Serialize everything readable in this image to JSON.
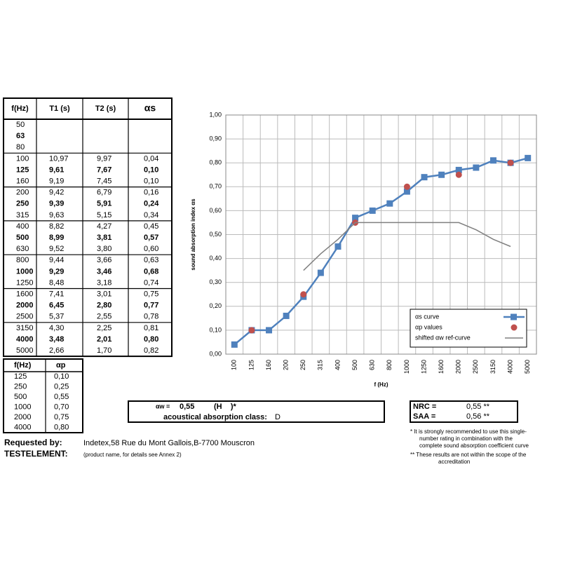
{
  "table": {
    "header": [
      "f(Hz)",
      "T1 (s)",
      "T2 (s)",
      "αs"
    ],
    "rows": [
      [
        "50"
      ],
      [
        "63"
      ],
      [
        "80"
      ],
      [
        "100",
        "10,97",
        "9,97",
        "0,04"
      ],
      [
        "125",
        "9,61",
        "7,67",
        "0,10"
      ],
      [
        "160",
        "9,19",
        "7,45",
        "0,10"
      ],
      [
        "200",
        "9,42",
        "6,79",
        "0,16"
      ],
      [
        "250",
        "9,39",
        "5,91",
        "0,24"
      ],
      [
        "315",
        "9,63",
        "5,15",
        "0,34"
      ],
      [
        "400",
        "8,82",
        "4,27",
        "0,45"
      ],
      [
        "500",
        "8,99",
        "3,81",
        "0,57"
      ],
      [
        "630",
        "9,52",
        "3,80",
        "0,60"
      ],
      [
        "800",
        "9,44",
        "3,66",
        "0,63"
      ],
      [
        "1000",
        "9,29",
        "3,46",
        "0,68"
      ],
      [
        "1250",
        "8,48",
        "3,18",
        "0,74"
      ],
      [
        "1600",
        "7,41",
        "3,01",
        "0,75"
      ],
      [
        "2000",
        "6,45",
        "2,80",
        "0,77"
      ],
      [
        "2500",
        "5,37",
        "2,55",
        "0,78"
      ],
      [
        "3150",
        "4,30",
        "2,25",
        "0,81"
      ],
      [
        "4000",
        "3,48",
        "2,01",
        "0,80"
      ],
      [
        "5000",
        "2,66",
        "1,70",
        "0,82"
      ]
    ]
  },
  "table2": {
    "header": [
      "f(Hz)",
      "αp"
    ],
    "rows": [
      [
        "125",
        "0,10"
      ],
      [
        "250",
        "0,25"
      ],
      [
        "500",
        "0,55"
      ],
      [
        "1000",
        "0,70"
      ],
      [
        "2000",
        "0,75"
      ],
      [
        "4000",
        "0,80"
      ]
    ]
  },
  "chart_data": {
    "type": "line",
    "y_label": "sound absorption index αs",
    "x_label": "f (Hz)",
    "categories": [
      "100",
      "125",
      "160",
      "200",
      "250",
      "315",
      "400",
      "500",
      "630",
      "800",
      "1000",
      "1250",
      "1600",
      "2000",
      "2500",
      "3150",
      "4000",
      "5000"
    ],
    "ylim": [
      0,
      1
    ],
    "yticks": [
      {
        "value": 0,
        "label": "0,00"
      },
      {
        "value": 0.1,
        "label": "0,10"
      },
      {
        "value": 0.2,
        "label": "0,20"
      },
      {
        "value": 0.3,
        "label": "0,30"
      },
      {
        "value": 0.4,
        "label": "0,40"
      },
      {
        "value": 0.5,
        "label": "0,50"
      },
      {
        "value": 0.6,
        "label": "0,60"
      },
      {
        "value": 0.7,
        "label": "0,70"
      },
      {
        "value": 0.8,
        "label": "0,80"
      },
      {
        "value": 0.9,
        "label": "0,90"
      },
      {
        "value": 1,
        "label": "1,00"
      }
    ],
    "grid": true,
    "series": [
      {
        "name": "αs curve",
        "color": "#4f81bd",
        "marker": "square",
        "values": [
          0.04,
          0.1,
          0.1,
          0.16,
          0.24,
          0.34,
          0.45,
          0.57,
          0.6,
          0.63,
          0.68,
          0.74,
          0.75,
          0.77,
          0.78,
          0.81,
          0.8,
          0.82
        ]
      },
      {
        "name": "αp values",
        "color": "#c0504d",
        "marker": "circle",
        "values": [
          null,
          0.1,
          null,
          null,
          0.25,
          null,
          null,
          0.55,
          null,
          null,
          0.7,
          null,
          null,
          0.75,
          null,
          null,
          0.8,
          null
        ]
      },
      {
        "name": "shifted αw ref-curve",
        "color": "#808080",
        "marker": "none",
        "values": [
          null,
          null,
          null,
          null,
          0.35,
          0.42,
          0.48,
          0.55,
          0.55,
          0.55,
          0.55,
          0.55,
          0.55,
          0.55,
          0.52,
          0.48,
          0.45,
          null
        ]
      }
    ]
  },
  "rating": {
    "alpha_w_label": "αw =",
    "alpha_w": "0,55",
    "shape": "(H    )*",
    "class_label": "acoustical absorption class:",
    "class": "D"
  },
  "nrc": {
    "nrc_label": "NRC =",
    "nrc": "0,55 **",
    "saa_label": "SAA =",
    "saa": "0,56 **"
  },
  "notes": {
    "note1": [
      "* It is strongly recommended to use this single-",
      "number rating in combination with the",
      "complete sound absorption coefficient curve"
    ],
    "note2": [
      "** These results are not within the scope of the",
      "accreditation"
    ]
  },
  "footer": {
    "requested_label": "Requested by:",
    "requested": "Indetex,58 Rue du Mont Gallois,B-7700 Mouscron",
    "test_label": "TESTELEMENT:",
    "test": "(product name, for details see Annex 2)"
  }
}
